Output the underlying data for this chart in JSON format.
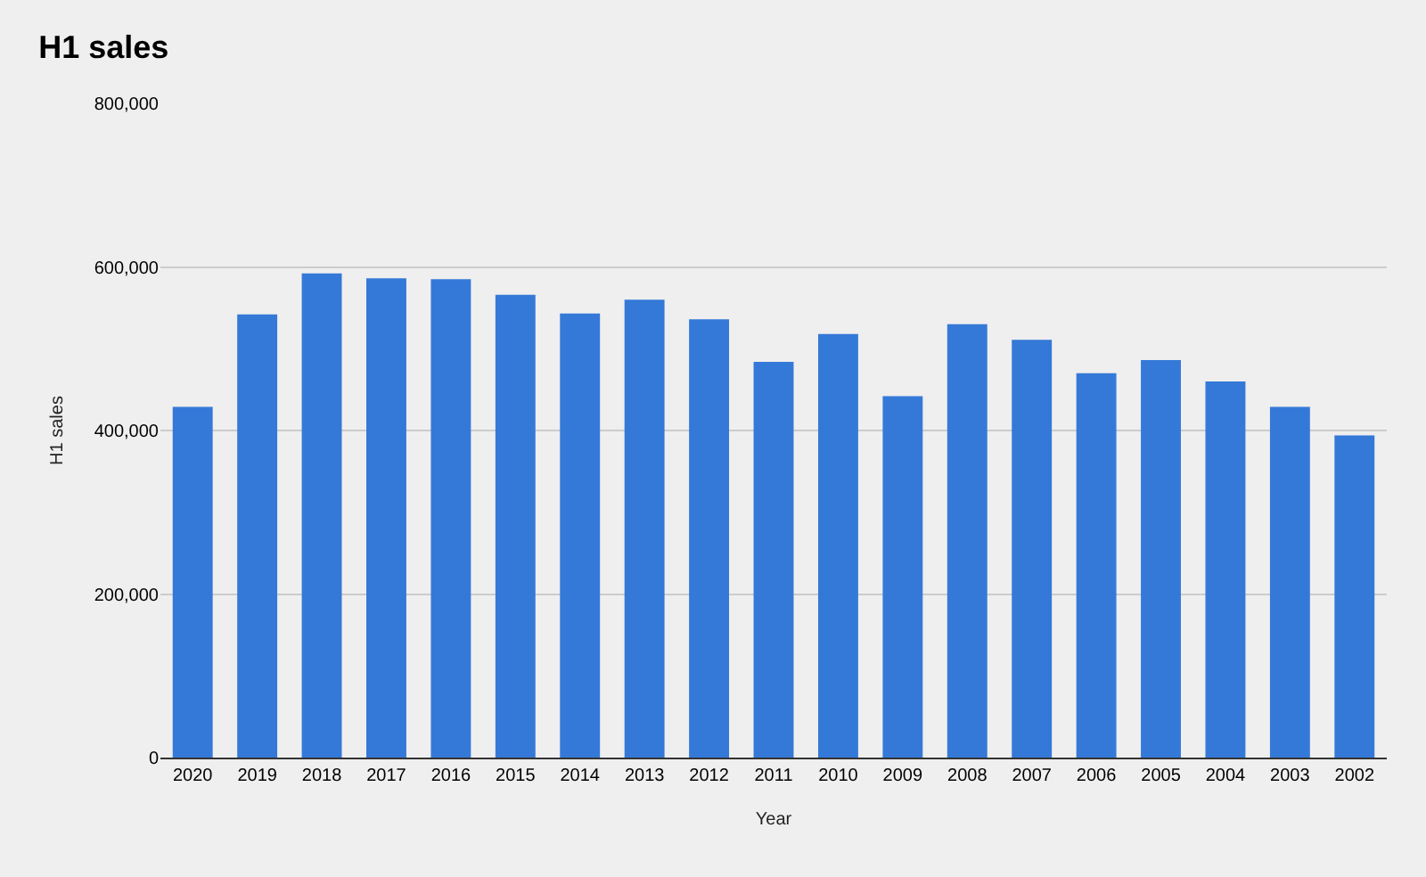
{
  "chart_data": {
    "type": "bar",
    "title": "H1 sales",
    "xlabel": "Year",
    "ylabel": "H1 sales",
    "categories": [
      "2020",
      "2019",
      "2018",
      "2017",
      "2016",
      "2015",
      "2014",
      "2013",
      "2012",
      "2011",
      "2010",
      "2009",
      "2008",
      "2007",
      "2006",
      "2005",
      "2004",
      "2003",
      "2002"
    ],
    "values": [
      429000,
      542000,
      592000,
      586000,
      585000,
      566000,
      543000,
      560000,
      536000,
      484000,
      518000,
      442000,
      530000,
      511000,
      470000,
      486000,
      460000,
      429000,
      394000
    ],
    "color": "#3579d8",
    "ylim": [
      0,
      800000
    ],
    "yticks": [
      {
        "value": 0,
        "label": "0"
      },
      {
        "value": 200000,
        "label": "200,000"
      },
      {
        "value": 400000,
        "label": "400,000"
      },
      {
        "value": 600000,
        "label": "600,000"
      },
      {
        "value": 800000,
        "label": "800,000"
      }
    ],
    "grid": "y"
  }
}
